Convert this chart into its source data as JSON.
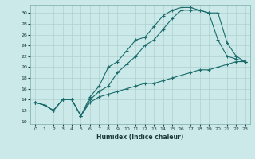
{
  "xlabel": "Humidex (Indice chaleur)",
  "bg_color": "#cce9e9",
  "line_color": "#1a6b6b",
  "grid_color": "#b0d0d0",
  "xlim": [
    -0.5,
    23.5
  ],
  "ylim": [
    9.5,
    31.5
  ],
  "xticks": [
    0,
    1,
    2,
    3,
    4,
    5,
    6,
    7,
    8,
    9,
    10,
    11,
    12,
    13,
    14,
    15,
    16,
    17,
    18,
    19,
    20,
    21,
    22,
    23
  ],
  "yticks": [
    10,
    12,
    14,
    16,
    18,
    20,
    22,
    24,
    26,
    28,
    30
  ],
  "line1_x": [
    0,
    1,
    2,
    3,
    4,
    5,
    6,
    7,
    8,
    9,
    10,
    11,
    12,
    13,
    14,
    15,
    16,
    17,
    18,
    19,
    20,
    21,
    22,
    23
  ],
  "line1_y": [
    13.5,
    13.0,
    12.0,
    14.0,
    14.0,
    11.0,
    14.5,
    16.5,
    20.0,
    21.0,
    23.0,
    25.0,
    25.5,
    27.5,
    29.5,
    30.5,
    31.0,
    31.0,
    30.5,
    30.0,
    25.0,
    22.0,
    21.5,
    21.0
  ],
  "line2_x": [
    0,
    1,
    2,
    3,
    4,
    5,
    6,
    7,
    8,
    9,
    10,
    11,
    12,
    13,
    14,
    15,
    16,
    17,
    18,
    19,
    20,
    21,
    22,
    23
  ],
  "line2_y": [
    13.5,
    13.0,
    12.0,
    14.0,
    14.0,
    11.0,
    14.0,
    15.5,
    16.5,
    19.0,
    20.5,
    22.0,
    24.0,
    25.0,
    27.0,
    29.0,
    30.5,
    30.5,
    30.5,
    30.0,
    30.0,
    24.5,
    22.0,
    21.0
  ],
  "line3_x": [
    0,
    1,
    2,
    3,
    4,
    5,
    6,
    7,
    8,
    9,
    10,
    11,
    12,
    13,
    14,
    15,
    16,
    17,
    18,
    19,
    20,
    21,
    22,
    23
  ],
  "line3_y": [
    13.5,
    13.0,
    12.0,
    14.0,
    14.0,
    11.0,
    13.5,
    14.5,
    15.0,
    15.5,
    16.0,
    16.5,
    17.0,
    17.0,
    17.5,
    18.0,
    18.5,
    19.0,
    19.5,
    19.5,
    20.0,
    20.5,
    21.0,
    21.0
  ]
}
